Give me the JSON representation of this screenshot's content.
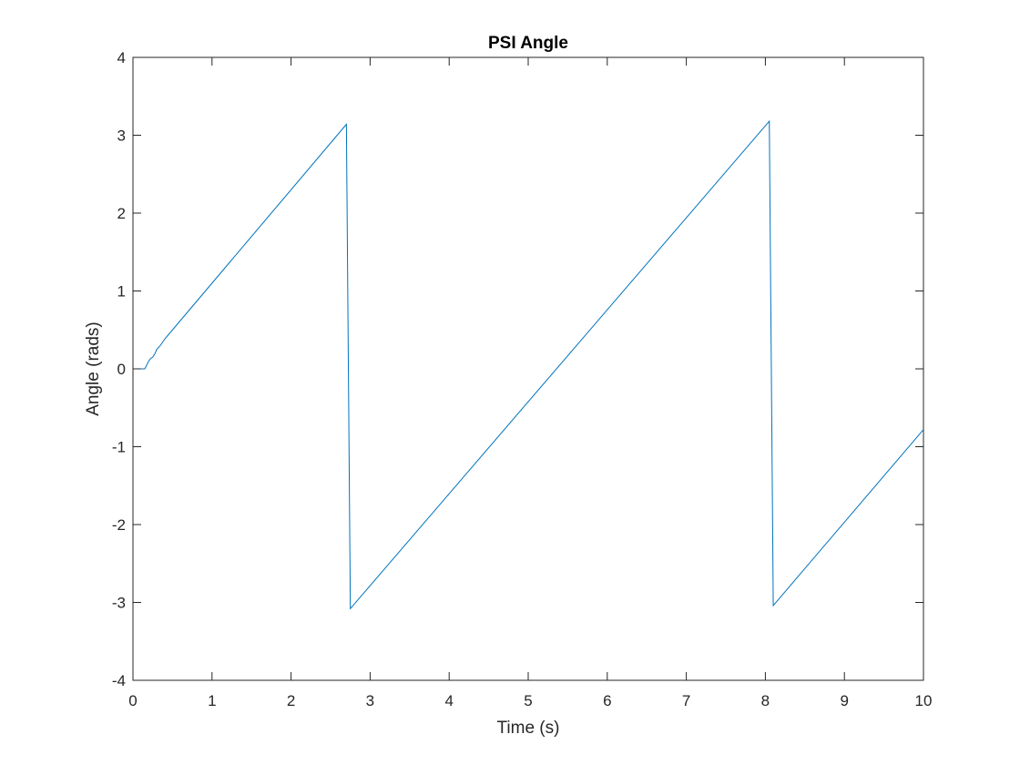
{
  "chart_data": {
    "type": "line",
    "title": "PSI Angle",
    "xlabel": "Time (s)",
    "ylabel": "Angle (rads)",
    "xlim": [
      0,
      10
    ],
    "ylim": [
      -4,
      4
    ],
    "xticks": [
      0,
      1,
      2,
      3,
      4,
      5,
      6,
      7,
      8,
      9,
      10
    ],
    "yticks": [
      -4,
      -3,
      -2,
      -1,
      0,
      1,
      2,
      3,
      4
    ],
    "xtick_labels": [
      "0",
      "1",
      "2",
      "3",
      "4",
      "5",
      "6",
      "7",
      "8",
      "9",
      "10"
    ],
    "ytick_labels": [
      "-4",
      "-3",
      "-2",
      "-1",
      "0",
      "1",
      "2",
      "3",
      "4"
    ],
    "grid": false,
    "box": true,
    "series": [
      {
        "color": "#0072BD",
        "x": [
          0.1,
          0.15,
          0.2,
          0.22,
          0.25,
          0.28,
          0.3,
          0.33,
          0.36,
          0.4,
          0.45,
          0.5,
          2.7,
          2.75,
          8.05,
          8.1,
          10.0
        ],
        "y": [
          0.0,
          0.0,
          0.1,
          0.13,
          0.15,
          0.2,
          0.25,
          0.28,
          0.32,
          0.38,
          0.44,
          0.5,
          3.14,
          -3.08,
          3.18,
          -3.04,
          -0.78
        ]
      }
    ]
  },
  "colors": {
    "axis": "#262626",
    "background": "#ffffff"
  }
}
